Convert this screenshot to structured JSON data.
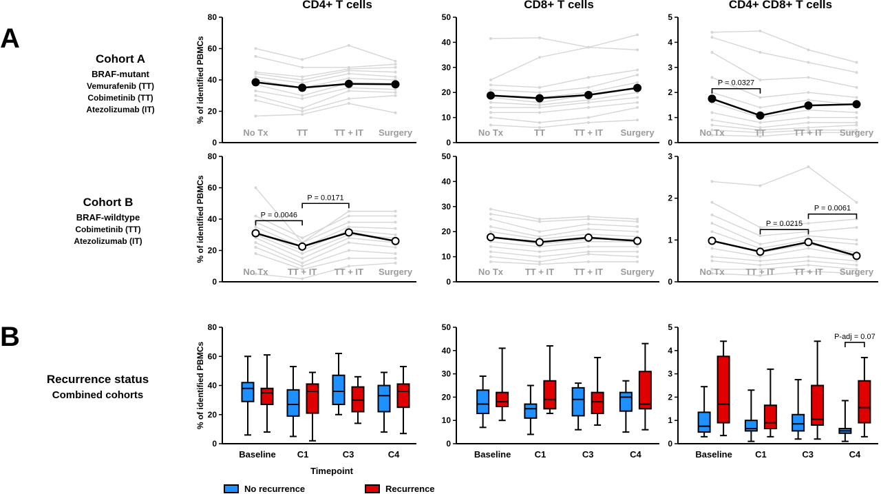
{
  "panels": {
    "a": "A",
    "b": "B"
  },
  "cohort_a": {
    "name": "Cohort  A",
    "status": "BRAF-mutant",
    "drugs": [
      "Vemurafenib (TT)",
      "Cobimetinib (TT)",
      "Atezolizumab (IT)"
    ]
  },
  "cohort_b": {
    "name": "Cohort  B",
    "status": "BRAF-wildtype",
    "drugs": [
      "Cobimetinib (TT)",
      "Atezolizumab (IT)"
    ]
  },
  "recurrence_label": {
    "line1": "Recurrence status",
    "line2": "Combined cohorts"
  },
  "column_titles": [
    "CD4+ T cells",
    "CD8+ T cells",
    "CD4+ CD8+  T cells"
  ],
  "ylabel": "% of identified PBMCs",
  "xlabel_b": "Timepoint",
  "legend": [
    {
      "label": "No recurrence",
      "color": "#1e90ff"
    },
    {
      "label": "Recurrence",
      "color": "#e00000"
    }
  ],
  "colors": {
    "individual": "#d6d6d6",
    "mean": "#000000",
    "no_recurrence": "#1e90ff",
    "recurrence": "#e00000",
    "xtick_text": "#9b9b9b"
  },
  "chart_data": [
    {
      "id": "a-cd4",
      "type": "line",
      "ylim": [
        0,
        80
      ],
      "yticks": [
        0,
        20,
        40,
        60,
        80
      ],
      "categories": [
        "No Tx",
        "TT",
        "TT + IT",
        "Surgery"
      ],
      "marker": "filled",
      "series": [
        {
          "values": [
            38.5,
            35,
            37.5,
            37.2
          ]
        }
      ],
      "individuals": [
        [
          60,
          53,
          62,
          52
        ],
        [
          55,
          48,
          48,
          50
        ],
        [
          45,
          42,
          47,
          48
        ],
        [
          44,
          40,
          46,
          45
        ],
        [
          42,
          38,
          44,
          42
        ],
        [
          40,
          35,
          41,
          40
        ],
        [
          37,
          30,
          38,
          38
        ],
        [
          33,
          28,
          35,
          34
        ],
        [
          30,
          22,
          33,
          32
        ],
        [
          27,
          20,
          28,
          30
        ],
        [
          17,
          18,
          25,
          19
        ]
      ],
      "annotations": []
    },
    {
      "id": "a-cd8",
      "type": "line",
      "ylim": [
        0,
        50
      ],
      "yticks": [
        0,
        10,
        20,
        30,
        40,
        50
      ],
      "categories": [
        "No Tx",
        "TT",
        "TT + IT",
        "Surgery"
      ],
      "marker": "filled",
      "series": [
        {
          "values": [
            18.8,
            17.7,
            19,
            21.8
          ]
        }
      ],
      "individuals": [
        [
          41.5,
          41.8,
          38,
          43
        ],
        [
          25,
          34,
          38,
          37
        ],
        [
          23,
          22,
          26,
          29
        ],
        [
          21,
          20,
          22,
          27
        ],
        [
          19,
          18,
          20,
          24
        ],
        [
          18,
          16,
          19,
          22
        ],
        [
          16,
          15,
          17,
          20
        ],
        [
          14,
          14,
          16,
          18
        ],
        [
          12,
          12,
          14,
          16
        ],
        [
          10,
          8,
          10,
          14
        ],
        [
          7,
          6,
          8,
          9
        ]
      ],
      "annotations": []
    },
    {
      "id": "a-dp",
      "type": "line",
      "ylim": [
        0,
        5
      ],
      "yticks": [
        0,
        1,
        2,
        3,
        4,
        5
      ],
      "categories": [
        "No Tx",
        "TT",
        "TT + IT",
        "Surgery"
      ],
      "marker": "filled",
      "series": [
        {
          "values": [
            1.75,
            1.08,
            1.48,
            1.53
          ]
        }
      ],
      "individuals": [
        [
          4.4,
          4.45,
          3.7,
          3.2
        ],
        [
          4.2,
          3.6,
          3.2,
          2.8
        ],
        [
          3.6,
          2.5,
          2.6,
          2.2
        ],
        [
          2.6,
          1.8,
          2.0,
          1.8
        ],
        [
          2.0,
          1.4,
          1.7,
          1.5
        ],
        [
          1.6,
          1.0,
          1.3,
          1.2
        ],
        [
          1.2,
          0.8,
          1.0,
          1.0
        ],
        [
          0.9,
          0.6,
          0.8,
          0.8
        ],
        [
          0.7,
          0.5,
          0.6,
          0.7
        ],
        [
          0.5,
          0.4,
          0.5,
          0.5
        ],
        [
          0.3,
          0.25,
          0.4,
          0.4
        ]
      ],
      "annotations": [
        {
          "text": "P = 0.0327",
          "from": 0,
          "to": 1,
          "y": 2.15
        }
      ]
    },
    {
      "id": "b-cd4",
      "type": "line",
      "ylim": [
        0,
        80
      ],
      "yticks": [
        0,
        20,
        40,
        60,
        80
      ],
      "categories": [
        "No Tx",
        "TT + IT",
        "TT + IT",
        "Surgery"
      ],
      "marker": "open",
      "series": [
        {
          "values": [
            31,
            22.5,
            31.5,
            26
          ]
        }
      ],
      "individuals": [
        [
          60,
          25,
          45,
          45
        ],
        [
          42,
          28,
          42,
          42
        ],
        [
          38,
          25,
          38,
          38
        ],
        [
          35,
          22,
          35,
          34
        ],
        [
          32,
          20,
          33,
          30
        ],
        [
          30,
          18,
          30,
          28
        ],
        [
          28,
          15,
          28,
          25
        ],
        [
          25,
          12,
          25,
          22
        ],
        [
          22,
          10,
          20,
          18
        ],
        [
          18,
          8,
          15,
          15
        ],
        [
          5,
          2,
          10,
          12
        ]
      ],
      "annotations": [
        {
          "text": "P = 0.0046",
          "from": 0,
          "to": 1,
          "y": 39
        },
        {
          "text": "P = 0.0171",
          "from": 1,
          "to": 2,
          "y": 50
        }
      ]
    },
    {
      "id": "b-cd8",
      "type": "line",
      "ylim": [
        0,
        50
      ],
      "yticks": [
        0,
        10,
        20,
        30,
        40,
        50
      ],
      "categories": [
        "No Tx",
        "TT + IT",
        "TT + IT",
        "Surgery"
      ],
      "marker": "open",
      "series": [
        {
          "values": [
            17.8,
            15.8,
            17.6,
            16.3
          ]
        }
      ],
      "individuals": [
        [
          29,
          25,
          26,
          25
        ],
        [
          27,
          24,
          25,
          24
        ],
        [
          25,
          20,
          23,
          22
        ],
        [
          22,
          18,
          21,
          20
        ],
        [
          20,
          17,
          19,
          18
        ],
        [
          18,
          15,
          17,
          17
        ],
        [
          16,
          14,
          16,
          16
        ],
        [
          14,
          12,
          14,
          14
        ],
        [
          12,
          10,
          12,
          12
        ],
        [
          10,
          8,
          11,
          10
        ],
        [
          8,
          7,
          8,
          8
        ]
      ],
      "annotations": []
    },
    {
      "id": "b-dp",
      "type": "line",
      "ylim": [
        0,
        3
      ],
      "yticks": [
        0,
        1,
        2,
        3
      ],
      "categories": [
        "No Tx",
        "TT + IT",
        "TT + IT",
        "Surgery"
      ],
      "marker": "open",
      "series": [
        {
          "values": [
            0.98,
            0.72,
            0.95,
            0.62
          ]
        }
      ],
      "individuals": [
        [
          2.4,
          2.3,
          2.75,
          1.9
        ],
        [
          1.9,
          1.3,
          1.4,
          1.5
        ],
        [
          1.6,
          1.1,
          1.2,
          1.3
        ],
        [
          1.4,
          0.9,
          1.1,
          1.0
        ],
        [
          1.2,
          0.8,
          1.0,
          0.9
        ],
        [
          1.0,
          0.7,
          0.9,
          0.7
        ],
        [
          0.8,
          0.6,
          0.8,
          0.6
        ],
        [
          0.6,
          0.5,
          0.6,
          0.5
        ],
        [
          0.5,
          0.4,
          0.5,
          0.4
        ],
        [
          0.3,
          0.3,
          0.4,
          0.3
        ],
        [
          0.2,
          0.15,
          0.25,
          0.2
        ]
      ],
      "annotations": [
        {
          "text": "P = 0.0215",
          "from": 1,
          "to": 2,
          "y": 1.25
        },
        {
          "text": "P = 0.0061",
          "from": 2,
          "to": 3,
          "y": 1.62
        }
      ]
    },
    {
      "id": "rec-cd4",
      "type": "box",
      "ylim": [
        0,
        80
      ],
      "yticks": [
        0,
        20,
        40,
        60,
        80
      ],
      "categories": [
        "Baseline",
        "C1",
        "C3",
        "C4"
      ],
      "series": [
        {
          "name": "No recurrence",
          "boxes": [
            [
              6,
              29,
              38,
              42,
              60
            ],
            [
              5,
              19,
              27,
              37,
              53
            ],
            [
              20,
              27,
              36,
              47,
              62
            ],
            [
              8,
              22,
              33,
              40,
              49
            ]
          ]
        },
        {
          "name": "Recurrence",
          "boxes": [
            [
              8,
              27,
              35,
              38,
              61
            ],
            [
              2,
              21,
              36,
              41,
              49
            ],
            [
              14,
              22,
              30,
              39,
              46
            ],
            [
              7,
              25,
              36,
              41,
              53
            ]
          ]
        }
      ],
      "annotations": []
    },
    {
      "id": "rec-cd8",
      "type": "box",
      "ylim": [
        0,
        50
      ],
      "yticks": [
        0,
        10,
        20,
        30,
        40,
        50
      ],
      "categories": [
        "Baseline",
        "C1",
        "C3",
        "C4"
      ],
      "series": [
        {
          "name": "No recurrence",
          "boxes": [
            [
              7,
              13,
              17,
              23,
              29
            ],
            [
              4,
              11,
              15,
              17,
              25
            ],
            [
              6,
              12,
              19,
              24,
              26
            ],
            [
              5,
              14,
              20,
              22,
              27
            ]
          ]
        },
        {
          "name": "Recurrence",
          "boxes": [
            [
              10,
              16,
              18,
              22,
              41
            ],
            [
              13,
              15,
              19,
              27,
              42
            ],
            [
              8,
              13,
              18,
              22,
              37
            ],
            [
              6,
              15,
              17,
              31,
              43
            ]
          ]
        }
      ],
      "annotations": []
    },
    {
      "id": "rec-dp",
      "type": "box",
      "ylim": [
        0,
        5
      ],
      "yticks": [
        0,
        1,
        2,
        3,
        4,
        5
      ],
      "categories": [
        "Baseline",
        "C1",
        "C3",
        "C4"
      ],
      "series": [
        {
          "name": "No recurrence",
          "boxes": [
            [
              0.3,
              0.5,
              0.75,
              1.35,
              2.45
            ],
            [
              0.1,
              0.55,
              0.65,
              1.0,
              2.3
            ],
            [
              0.2,
              0.55,
              0.85,
              1.25,
              2.75
            ],
            [
              0.1,
              0.45,
              0.55,
              0.65,
              1.85
            ]
          ]
        },
        {
          "name": "Recurrence",
          "boxes": [
            [
              0.35,
              0.9,
              1.7,
              3.75,
              4.4
            ],
            [
              0.3,
              0.65,
              0.9,
              1.65,
              3.2
            ],
            [
              0.2,
              0.8,
              1.05,
              2.5,
              4.4
            ],
            [
              0.3,
              0.9,
              1.55,
              2.7,
              3.7
            ]
          ]
        }
      ],
      "annotations": [
        {
          "text": "P-adj = 0.07",
          "from": 3,
          "to": 3.25,
          "y": 4.35
        }
      ]
    }
  ]
}
